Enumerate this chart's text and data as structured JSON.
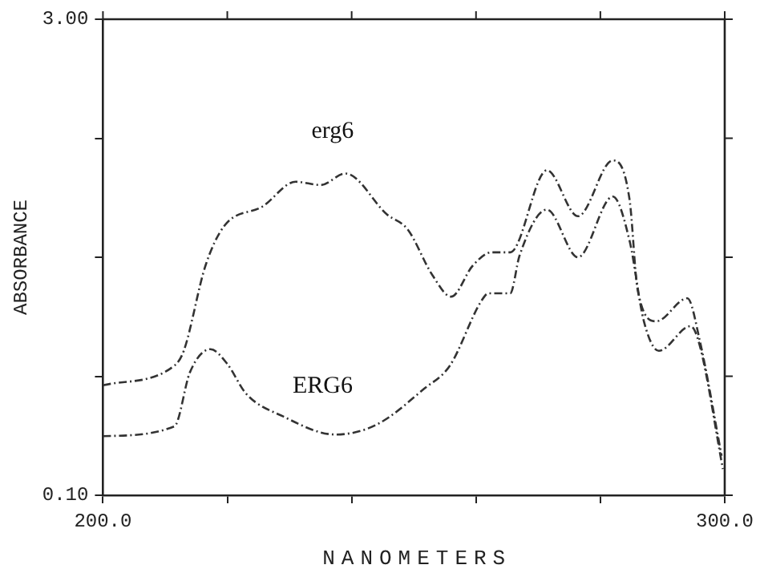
{
  "chart_data": {
    "type": "line",
    "xlabel": "NANOMETERS",
    "ylabel": "ABSORBANCE",
    "xlim": [
      200,
      300
    ],
    "xticks": [
      {
        "value": 200,
        "label": "200.0"
      },
      {
        "value": 220,
        "label": null
      },
      {
        "value": 240,
        "label": null
      },
      {
        "value": 260,
        "label": null
      },
      {
        "value": 280,
        "label": null
      },
      {
        "value": 300,
        "label": "300.0"
      }
    ],
    "ylim": [
      0.1,
      3.0
    ],
    "yticks": [
      {
        "value": 0.1,
        "label": "0.10"
      },
      {
        "value": 0.825,
        "label": null
      },
      {
        "value": 1.55,
        "label": null
      },
      {
        "value": 2.275,
        "label": null
      },
      {
        "value": 3.0,
        "label": "3.00"
      }
    ],
    "grid": false,
    "legend": false,
    "marker": "none",
    "line_style": "dashed",
    "series": [
      {
        "name": "erg6",
        "color": "#333333",
        "x": [
          200,
          211.5,
          213,
          216.5,
          219.5,
          225.7,
          231,
          235,
          239,
          245.7,
          249,
          253,
          256,
          259.5,
          262.5,
          265.5,
          271.4,
          276.4,
          282,
          284.7,
          286,
          289,
          294,
          296,
          299.5
        ],
        "values": [
          0.77,
          0.89,
          0.98,
          1.5,
          1.74,
          1.86,
          2.01,
          1.99,
          2.06,
          1.81,
          1.72,
          1.44,
          1.31,
          1.5,
          1.58,
          1.58,
          2.08,
          1.8,
          2.14,
          1.9,
          1.35,
          1.16,
          1.3,
          1.04,
          0.34
        ]
      },
      {
        "name": "ERG6",
        "color": "#333333",
        "x": [
          200,
          211.5,
          214,
          217.3,
          220,
          223,
          229,
          237.4,
          244,
          251.7,
          255.8,
          260.8,
          262,
          265.5,
          267,
          271.4,
          276.4,
          282,
          284.7,
          287,
          289.4,
          294.5,
          296,
          299.7
        ],
        "values": [
          0.46,
          0.52,
          0.85,
          0.99,
          0.9,
          0.72,
          0.58,
          0.47,
          0.53,
          0.75,
          0.89,
          1.28,
          1.33,
          1.33,
          1.56,
          1.84,
          1.55,
          1.92,
          1.65,
          1.16,
          0.98,
          1.13,
          1.01,
          0.26
        ]
      }
    ]
  }
}
